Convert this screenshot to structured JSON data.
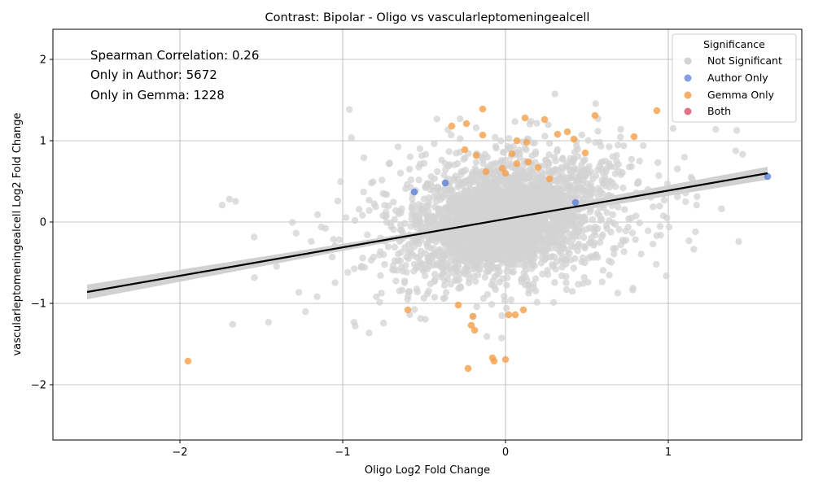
{
  "chart_data": {
    "type": "scatter",
    "title": "Contrast: Bipolar - Oligo vs vascularleptomeningealcell",
    "xlabel": "Oligo Log2 Fold Change",
    "ylabel": "vascularleptomeningealcell Log2 Fold Change",
    "xlim": [
      -2.78,
      1.82
    ],
    "ylim": [
      -2.68,
      2.37
    ],
    "xticks": [
      -2,
      -1,
      0,
      1
    ],
    "yticks": [
      -2,
      -1,
      0,
      1,
      2
    ],
    "xtick_labels": [
      "−2",
      "−1",
      "0",
      "1"
    ],
    "ytick_labels": [
      "−2",
      "−1",
      "0",
      "1",
      "2"
    ],
    "grid": true,
    "legend": {
      "title": "Significance",
      "placement": "top-right",
      "entries": [
        "Not Significant",
        "Author Only",
        "Gemma Only",
        "Both"
      ]
    },
    "colors": {
      "Not Significant": "#d3d3d3",
      "Author Only": "#5b7fdc",
      "Gemma Only": "#f5a04a",
      "Both": "#dc5a6e",
      "regression": "#000000",
      "band": "#cccccc"
    },
    "annotations": [
      "Spearman Correlation: 0.26",
      "Only in Author: 5672",
      "Only in Gemma: 1228"
    ],
    "regression": {
      "x": [
        -2.57,
        1.61
      ],
      "y": [
        -0.86,
        0.6
      ]
    },
    "series": [
      {
        "name": "Author Only",
        "points": [
          [
            -0.56,
            0.37
          ],
          [
            -0.37,
            0.48
          ],
          [
            0.43,
            0.24
          ],
          [
            1.61,
            0.56
          ]
        ]
      },
      {
        "name": "Gemma Only",
        "points": [
          [
            -1.95,
            -1.71
          ],
          [
            -0.6,
            -1.08
          ],
          [
            -0.33,
            1.18
          ],
          [
            -0.14,
            1.39
          ],
          [
            -0.24,
            1.21
          ],
          [
            -0.14,
            1.07
          ],
          [
            -0.25,
            0.89
          ],
          [
            -0.18,
            0.82
          ],
          [
            0.12,
            1.28
          ],
          [
            0.24,
            1.26
          ],
          [
            0.38,
            1.11
          ],
          [
            0.42,
            1.02
          ],
          [
            0.32,
            1.08
          ],
          [
            0.07,
            1.0
          ],
          [
            0.13,
            0.98
          ],
          [
            0.55,
            1.31
          ],
          [
            0.93,
            1.37
          ],
          [
            0.79,
            1.05
          ],
          [
            0.49,
            0.85
          ],
          [
            0.04,
            0.84
          ],
          [
            0.07,
            0.72
          ],
          [
            0.14,
            0.74
          ],
          [
            -0.02,
            0.66
          ],
          [
            0.2,
            0.67
          ],
          [
            0.27,
            0.53
          ],
          [
            -0.29,
            -1.02
          ],
          [
            -0.2,
            -1.16
          ],
          [
            -0.21,
            -1.27
          ],
          [
            -0.19,
            -1.33
          ],
          [
            -0.23,
            -1.8
          ],
          [
            -0.08,
            -1.67
          ],
          [
            -0.07,
            -1.71
          ],
          [
            0.0,
            -1.69
          ],
          [
            0.02,
            -1.14
          ],
          [
            0.06,
            -1.14
          ],
          [
            0.11,
            -1.08
          ],
          [
            -0.12,
            0.62
          ],
          [
            0.0,
            0.6
          ]
        ]
      },
      {
        "name": "Both",
        "points": []
      }
    ]
  }
}
